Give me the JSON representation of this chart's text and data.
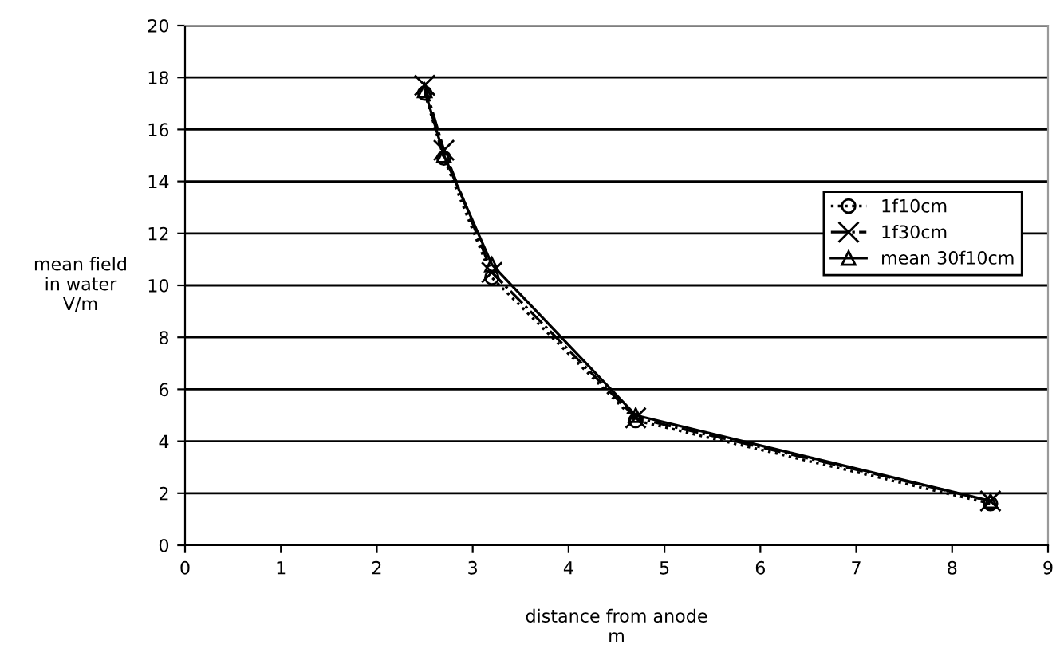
{
  "chart_data": {
    "type": "line",
    "xlabel": "distance from anode\nm",
    "ylabel": "mean field\nin water\nV/m",
    "xlim": [
      0,
      9
    ],
    "ylim": [
      0,
      20
    ],
    "xticks": [
      0,
      1,
      2,
      3,
      4,
      5,
      6,
      7,
      8,
      9
    ],
    "yticks": [
      0,
      2,
      4,
      6,
      8,
      10,
      12,
      14,
      16,
      18,
      20
    ],
    "grid": "y",
    "legend": "right",
    "series": [
      {
        "name": "1f10cm",
        "color": "#000000",
        "x": [
          2.5,
          2.7,
          3.2,
          4.7,
          8.4
        ],
        "values": [
          17.4,
          14.9,
          10.3,
          4.8,
          1.6
        ],
        "marker": "circle",
        "line_style": "dotted"
      },
      {
        "name": "1f30cm",
        "color": "#000000",
        "x": [
          2.5,
          2.7,
          3.2,
          4.7,
          8.4
        ],
        "values": [
          17.7,
          15.2,
          10.5,
          4.9,
          1.7
        ],
        "marker": "cross",
        "line_style": "dashdot"
      },
      {
        "name": "mean 30f10cm",
        "color": "#000000",
        "x": [
          2.5,
          2.7,
          3.2,
          4.7,
          8.4
        ],
        "values": [
          17.5,
          15.0,
          10.8,
          5.0,
          1.7
        ],
        "marker": "triangle",
        "line_style": "solid"
      }
    ]
  }
}
